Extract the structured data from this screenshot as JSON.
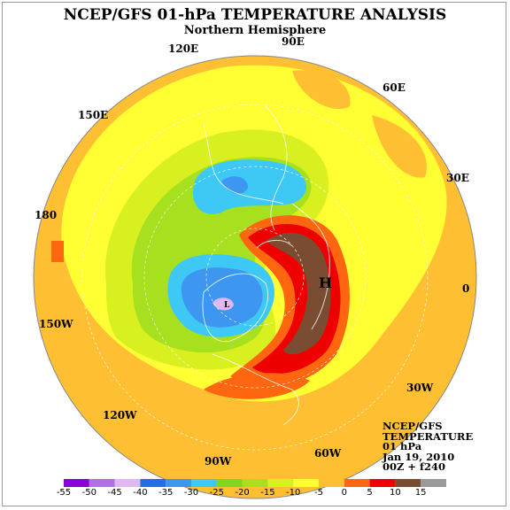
{
  "title": "NCEP/GFS 01-hPa TEMPERATURE ANALYSIS",
  "subtitle": "Northern Hemisphere",
  "longitude_labels": [
    "0",
    "30E",
    "60E",
    "90E",
    "120E",
    "150E",
    "180",
    "150W",
    "120W",
    "90W",
    "60W",
    "30W"
  ],
  "extrema_markers": {
    "high": "H",
    "low": "L"
  },
  "info": {
    "line1": "NCEP/GFS",
    "line2": "TEMPERATURE",
    "line3": "01 hPa",
    "line4": "Jan 19, 2010",
    "line5": "00Z + f240"
  },
  "colorbar": {
    "labels": [
      "-55",
      "-50",
      "-45",
      "-40",
      "-35",
      "-30",
      "-25",
      "-20",
      "-15",
      "-10",
      "-5",
      "0",
      "5",
      "10",
      "15"
    ],
    "colors": [
      "#8f00d6",
      "#b06ee8",
      "#e0b8f0",
      "#1f6fe8",
      "#3d96f0",
      "#3ec8f5",
      "#7fd81f",
      "#a6e01f",
      "#d8f020",
      "#ffff33",
      "#ffbf33",
      "#ff6610",
      "#ee0000",
      "#7a4d33",
      "#999999"
    ]
  }
}
